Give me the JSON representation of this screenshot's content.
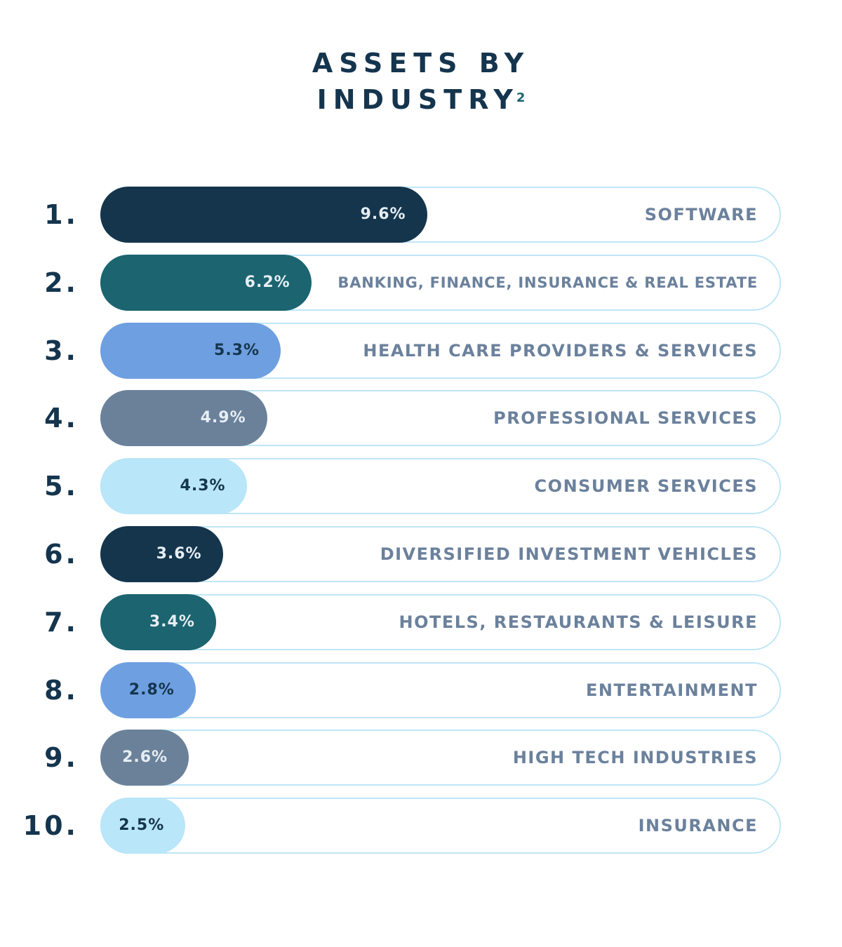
{
  "title_line1": "ASSETS BY",
  "title_line2": "INDUSTRY",
  "title_footnote": "2",
  "chart_data": {
    "type": "bar",
    "orientation": "horizontal",
    "title": "ASSETS BY INDUSTRY",
    "unit": "%",
    "ylim": [
      0,
      20
    ],
    "categories": [
      "SOFTWARE",
      "BANKING, FINANCE, INSURANCE & REAL ESTATE",
      "HEALTH CARE PROVIDERS & SERVICES",
      "PROFESSIONAL SERVICES",
      "CONSUMER SERVICES",
      "DIVERSIFIED INVESTMENT VEHICLES",
      "HOTELS, RESTAURANTS & LEISURE",
      "ENTERTAINMENT",
      "HIGH TECH INDUSTRIES",
      "INSURANCE"
    ],
    "ranks": [
      "1.",
      "2.",
      "3.",
      "4.",
      "5.",
      "6.",
      "7.",
      "8.",
      "9.",
      "10."
    ],
    "values": [
      9.6,
      6.2,
      5.3,
      4.9,
      4.3,
      3.6,
      3.4,
      2.8,
      2.6,
      2.5
    ],
    "value_labels": [
      "9.6%",
      "6.2%",
      "5.3%",
      "4.9%",
      "4.3%",
      "3.6%",
      "3.4%",
      "2.8%",
      "2.6%",
      "2.5%"
    ],
    "bar_colors": [
      "#14354c",
      "#1b6470",
      "#6e9fe0",
      "#6b819a",
      "#b9e6f8",
      "#14354c",
      "#1b6470",
      "#6e9fe0",
      "#6b819a",
      "#b9e6f8"
    ],
    "value_text_colors": [
      "#e6eef4",
      "#e6eef4",
      "#15354e",
      "#e6eef4",
      "#15354e",
      "#e6eef4",
      "#e6eef4",
      "#15354e",
      "#e6eef4",
      "#15354e"
    ],
    "track_color": "#bfe6f7",
    "label_color": "#6b819c",
    "rank_color": "#15354e"
  }
}
